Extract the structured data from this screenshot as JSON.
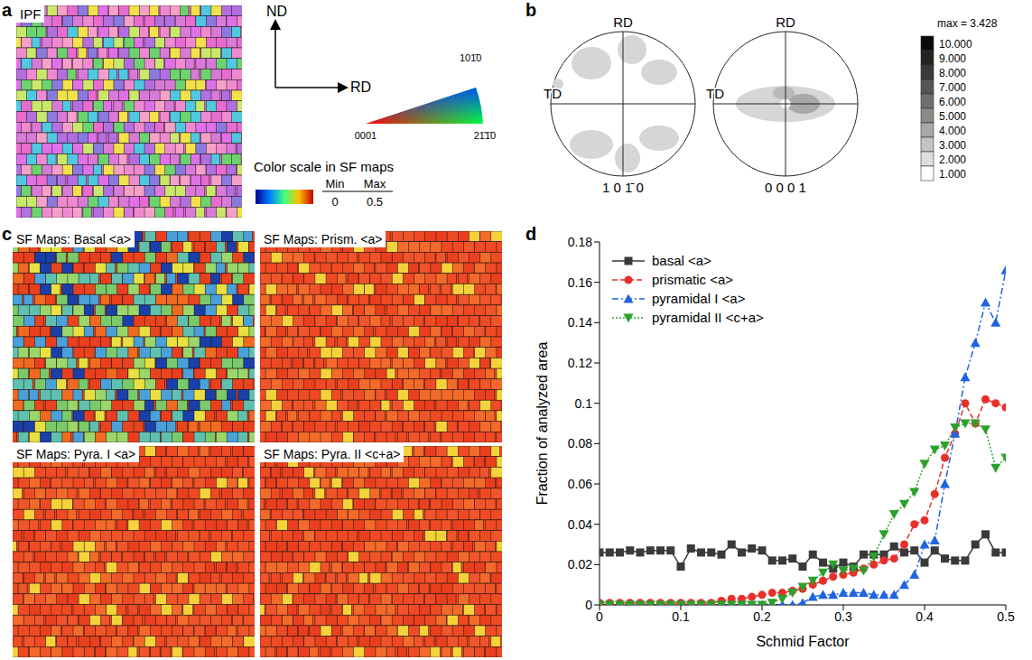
{
  "panels": {
    "a": {
      "letter": "a",
      "map_label": "IPF",
      "axes": [
        "ND",
        "RD"
      ],
      "triangle": [
        "101̄0",
        "0001",
        "21̄1̄0"
      ],
      "scale_title": "Color scale in SF maps",
      "scale_heads": [
        "Min",
        "Max"
      ],
      "scale_values": [
        "0",
        "0.5"
      ]
    },
    "b": {
      "letter": "b",
      "figures": [
        {
          "top": "RD",
          "left": "TD",
          "bottom": "1 0 1̄ 0"
        },
        {
          "top": "RD",
          "left": "TD",
          "bottom": "0 0 0 1"
        }
      ],
      "max_label": "max = 3.428",
      "levels": [
        "10.000",
        "9.000",
        "8.000",
        "7.000",
        "6.000",
        "5.000",
        "4.000",
        "3.000",
        "2.000",
        "1.000"
      ]
    },
    "c": {
      "letter": "c",
      "maps": [
        "SF Maps: Basal <a>",
        "SF Maps: Prism. <a>",
        "SF Maps: Pyra. I <a>",
        "SF Maps: Pyra. II <c+a>"
      ]
    }
  },
  "chart_data": {
    "panel": "d",
    "type": "line",
    "x_label": "Schmid Factor",
    "y_label": "Fraction of analyzed area",
    "x": [
      0,
      0.0125,
      0.025,
      0.0375,
      0.05,
      0.0625,
      0.075,
      0.0875,
      0.1,
      0.1125,
      0.125,
      0.1375,
      0.15,
      0.1625,
      0.175,
      0.1875,
      0.2,
      0.2125,
      0.225,
      0.2375,
      0.25,
      0.2625,
      0.275,
      0.2875,
      0.3,
      0.3125,
      0.325,
      0.3375,
      0.35,
      0.3625,
      0.375,
      0.3875,
      0.4,
      0.4125,
      0.425,
      0.4375,
      0.45,
      0.4625,
      0.475,
      0.4875,
      0.5
    ],
    "series": [
      {
        "name": "basal <a>",
        "color": "#3a3a3a",
        "marker": "square",
        "line_style": "solid",
        "values": [
          0.026,
          0.026,
          0.026,
          0.027,
          0.026,
          0.027,
          0.027,
          0.027,
          0.019,
          0.028,
          0.026,
          0.026,
          0.025,
          0.03,
          0.026,
          0.028,
          0.027,
          0.022,
          0.022,
          0.023,
          0.019,
          0.025,
          0.021,
          0.018,
          0.021,
          0.019,
          0.025,
          0.025,
          0.025,
          0.029,
          0.026,
          0.027,
          0.021,
          0.027,
          0.023,
          0.022,
          0.022,
          0.03,
          0.035,
          0.026,
          0.026
        ]
      },
      {
        "name": "prismatic <a>",
        "color": "#e8302a",
        "marker": "circle",
        "line_style": "dashed",
        "values": [
          0.001,
          0.001,
          0.001,
          0.001,
          0.001,
          0.001,
          0.001,
          0.001,
          0.001,
          0.001,
          0.001,
          0.001,
          0.002,
          0.003,
          0.003,
          0.004,
          0.005,
          0.006,
          0.006,
          0.007,
          0.008,
          0.01,
          0.012,
          0.014,
          0.015,
          0.016,
          0.018,
          0.02,
          0.022,
          0.023,
          0.03,
          0.04,
          0.042,
          0.055,
          0.073,
          0.085,
          0.1,
          0.09,
          0.102,
          0.1,
          0.098
        ]
      },
      {
        "name": "pyramidal I <a>",
        "color": "#1f64e0",
        "marker": "triangle",
        "line_style": "dashdot",
        "values": [
          0,
          0,
          0,
          0,
          0,
          0,
          0,
          0,
          0,
          0,
          0,
          0,
          0,
          0,
          0,
          0,
          0,
          0,
          0,
          0,
          0.001,
          0.004,
          0.005,
          0.005,
          0.006,
          0.006,
          0.006,
          0.005,
          0.005,
          0.005,
          0.01,
          0.015,
          0.03,
          0.032,
          0.06,
          0.085,
          0.113,
          0.13,
          0.15,
          0.14,
          0.166
        ]
      },
      {
        "name": "pyramidal II <c+a>",
        "color": "#2ca02c",
        "marker": "triangle-down",
        "line_style": "dotted",
        "values": [
          0,
          0,
          0,
          0,
          0,
          0,
          0,
          0,
          0,
          0,
          0,
          0,
          0,
          0,
          0,
          0,
          0,
          0.001,
          0.003,
          0.006,
          0.009,
          0.012,
          0.016,
          0.02,
          0.017,
          0.018,
          0.017,
          0.024,
          0.035,
          0.045,
          0.05,
          0.056,
          0.07,
          0.077,
          0.079,
          0.088,
          0.09,
          0.09,
          0.087,
          0.068,
          0.073
        ]
      }
    ],
    "xlim": [
      0,
      0.5
    ],
    "xticks": [
      0,
      0.1,
      0.2,
      0.3,
      0.4,
      0.5
    ],
    "ylim": [
      0,
      0.18
    ],
    "yticks": [
      0,
      0.02,
      0.04,
      0.06,
      0.08,
      0.1,
      0.12,
      0.14,
      0.16,
      0.18
    ],
    "grid": false,
    "legend": "upper left"
  }
}
